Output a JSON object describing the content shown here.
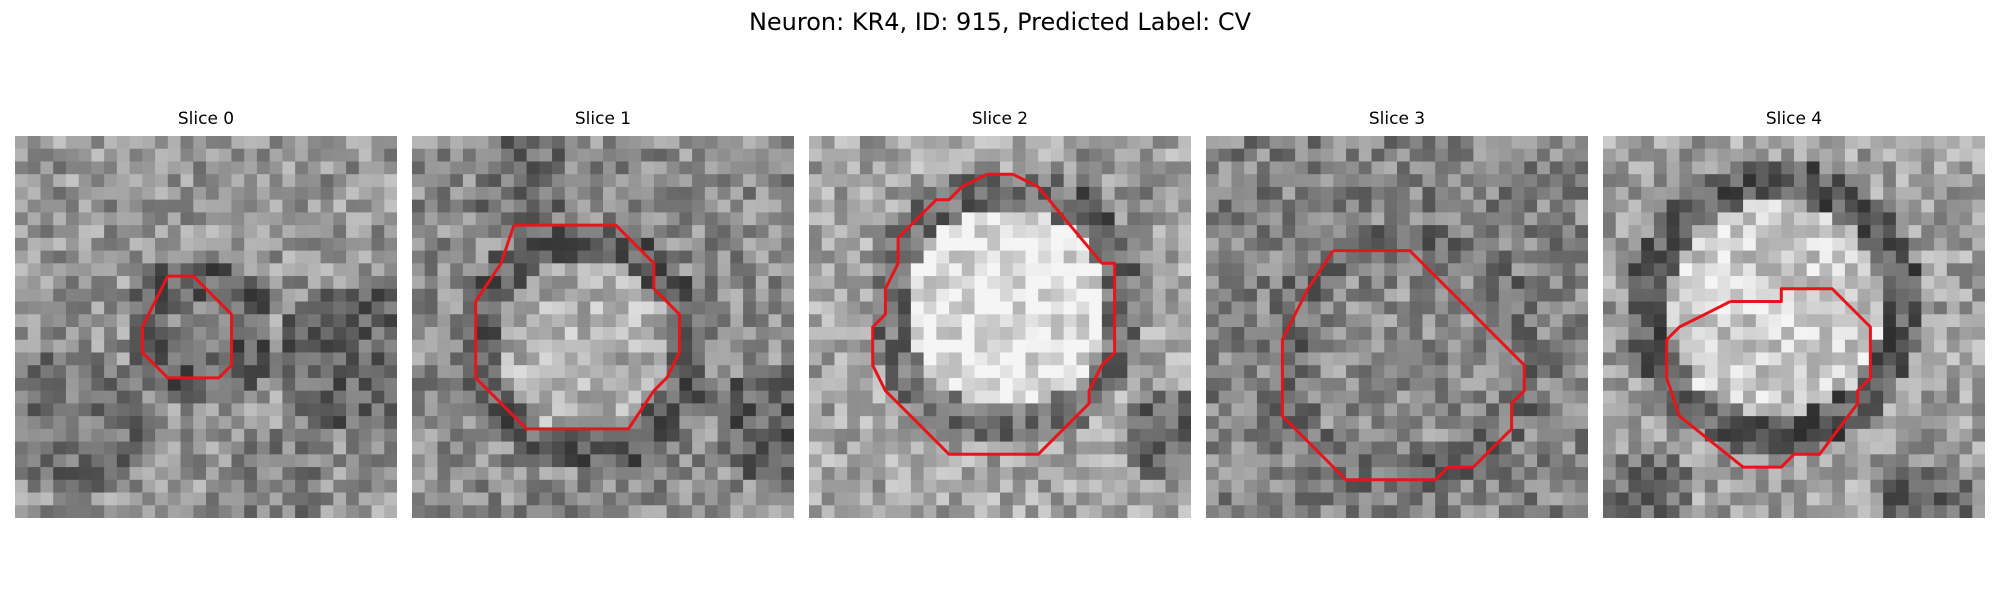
{
  "figure": {
    "title": "Neuron: KR4, ID: 915, Predicted Label: CV",
    "panels": [
      {
        "title": "Slice 0"
      },
      {
        "title": "Slice 1"
      },
      {
        "title": "Slice 2"
      },
      {
        "title": "Slice 3"
      },
      {
        "title": "Slice 4"
      }
    ]
  },
  "colors": {
    "background": "#ffffff",
    "contour": "#e8141b",
    "image_colormap": "grayscale"
  }
}
